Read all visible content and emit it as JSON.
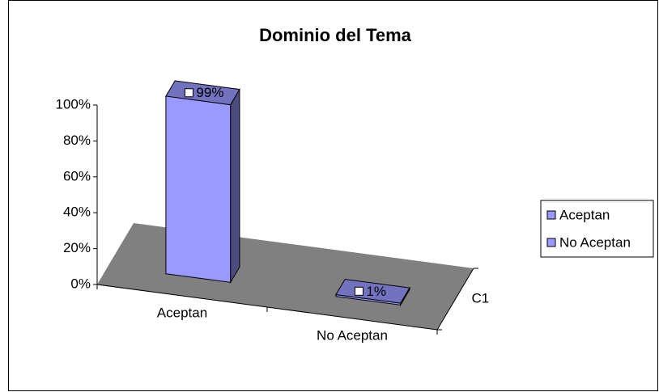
{
  "chart_data": {
    "type": "bar3d",
    "title": "Dominio del Tema",
    "categories": [
      "C1"
    ],
    "series": [
      {
        "name": "Aceptan",
        "color": "#9999ff",
        "values": [
          99
        ],
        "value_labels": [
          "99%"
        ]
      },
      {
        "name": "No Aceptan",
        "color": "#9999ff",
        "values": [
          1
        ],
        "value_labels": [
          "1%"
        ]
      }
    ],
    "ylim": [
      0,
      100
    ],
    "yticks": [
      {
        "value": 0,
        "label": "0%"
      },
      {
        "value": 20,
        "label": "20%"
      },
      {
        "value": 40,
        "label": "40%"
      },
      {
        "value": 60,
        "label": "60%"
      },
      {
        "value": 80,
        "label": "80%"
      },
      {
        "value": 100,
        "label": "100%"
      }
    ],
    "legend": "right"
  }
}
